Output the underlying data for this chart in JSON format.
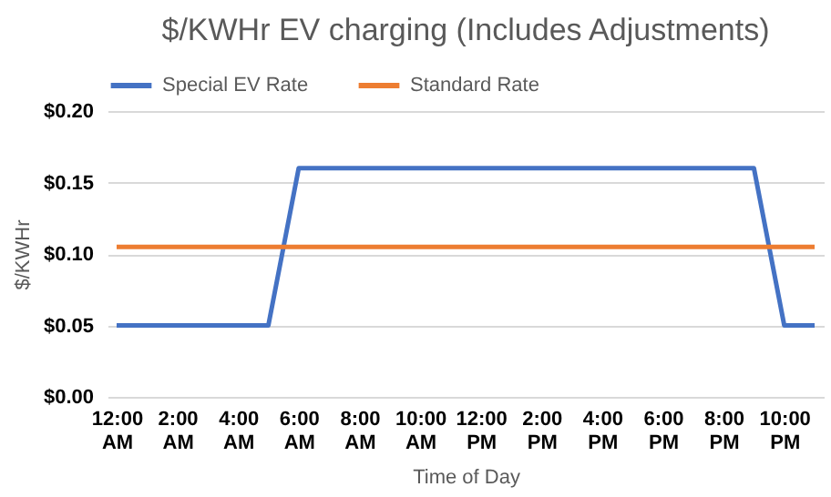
{
  "chart_data": {
    "type": "line",
    "title": "$/KWHr EV charging (Includes Adjustments)",
    "xlabel": "Time of Day",
    "ylabel": "$/KWHr",
    "categories": [
      "12:00 AM",
      null,
      "2:00 AM",
      null,
      "4:00 AM",
      null,
      "6:00 AM",
      null,
      "8:00 AM",
      null,
      "10:00 AM",
      null,
      "12:00 PM",
      null,
      "2:00 PM",
      null,
      "4:00 PM",
      null,
      "6:00 PM",
      null,
      "8:00 PM",
      null,
      "10:00 PM",
      null
    ],
    "series": [
      {
        "name": "Special EV Rate",
        "color": "#4472c4",
        "values": [
          0.05,
          0.05,
          0.05,
          0.05,
          0.05,
          0.05,
          0.16,
          0.16,
          0.16,
          0.16,
          0.16,
          0.16,
          0.16,
          0.16,
          0.16,
          0.16,
          0.16,
          0.16,
          0.16,
          0.16,
          0.16,
          0.16,
          0.05,
          0.05
        ]
      },
      {
        "name": "Standard Rate",
        "color": "#ed7d31",
        "values": [
          0.105,
          0.105,
          0.105,
          0.105,
          0.105,
          0.105,
          0.105,
          0.105,
          0.105,
          0.105,
          0.105,
          0.105,
          0.105,
          0.105,
          0.105,
          0.105,
          0.105,
          0.105,
          0.105,
          0.105,
          0.105,
          0.105,
          0.105,
          0.105
        ]
      }
    ],
    "ylim": [
      0,
      0.2
    ],
    "yticks": [
      {
        "value": 0,
        "label": "$0.00"
      },
      {
        "value": 0.05,
        "label": "$0.05"
      },
      {
        "value": 0.1,
        "label": "$0.10"
      },
      {
        "value": 0.15,
        "label": "$0.15"
      },
      {
        "value": 0.2,
        "label": "$0.20"
      }
    ],
    "grid": "y",
    "legend": "top",
    "marker": "none",
    "line_style": "solid"
  }
}
